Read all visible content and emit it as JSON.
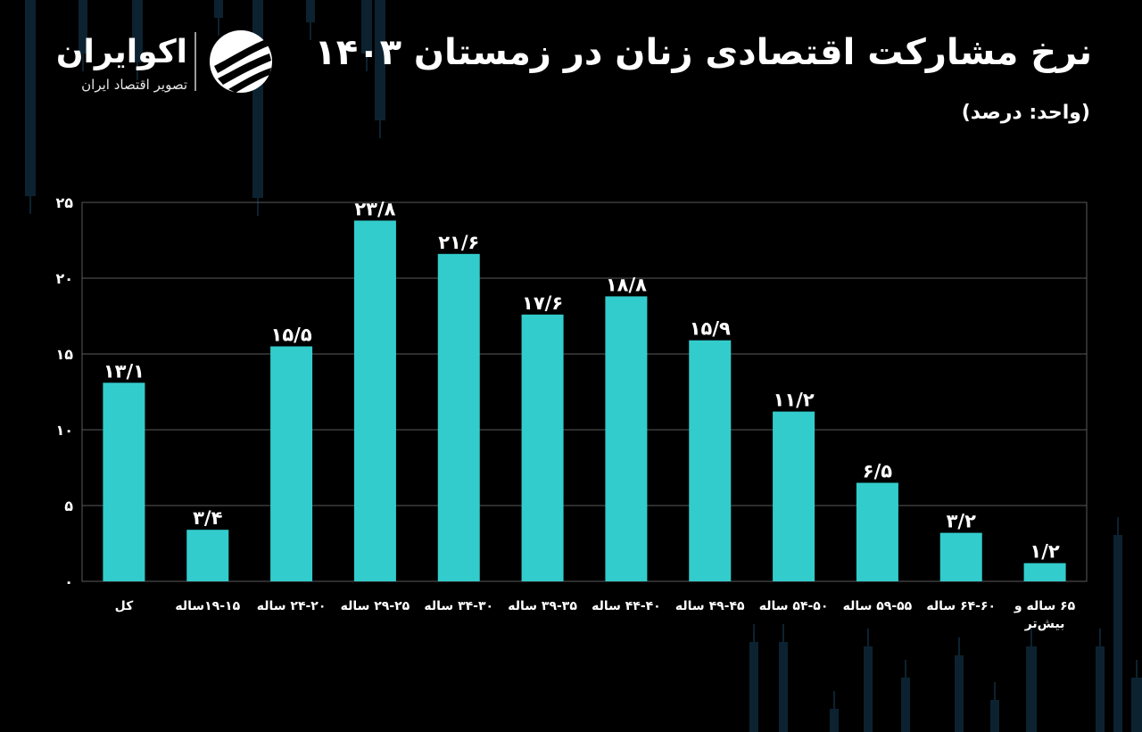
{
  "brand": {
    "name": "اکوایران",
    "tagline": "تصویر اقتصاد ایران"
  },
  "header": {
    "title": "نرخ مشارکت اقتصادی زنان در زمستان ۱۴۰۳",
    "unit": "(واحد: درصد)"
  },
  "colors": {
    "background": "#000000",
    "bar": "#33cccc",
    "grid": "#5a5a5a",
    "text": "#ffffff",
    "deco": "#0c2230"
  },
  "chart_data": {
    "type": "bar",
    "categories": [
      "کل",
      "۱۹-۱۵ساله",
      "۲۴-۲۰ ساله",
      "۲۹-۲۵ ساله",
      "۳۴-۳۰ ساله",
      "۳۹-۳۵ ساله",
      "۴۴-۴۰ ساله",
      "۴۹-۴۵ ساله",
      "۵۴-۵۰ ساله",
      "۵۹-۵۵ ساله",
      "۶۴-۶۰ ساله",
      [
        "۶۵ ساله و",
        "بیش‌تر"
      ]
    ],
    "values": [
      13.1,
      3.4,
      15.5,
      23.8,
      21.6,
      17.6,
      18.8,
      15.9,
      11.2,
      6.5,
      3.2,
      1.2
    ],
    "data_labels": [
      "۱۳/۱",
      "۳/۴",
      "۱۵/۵",
      "۲۳/۸",
      "۲۱/۶",
      "۱۷/۶",
      "۱۸/۸",
      "۱۵/۹",
      "۱۱/۲",
      "۶/۵",
      "۳/۲",
      "۱/۲"
    ],
    "title": "نرخ مشارکت اقتصادی زنان در زمستان ۱۴۰۳",
    "xlabel": "",
    "ylabel": "",
    "ylim": [
      0,
      25
    ],
    "yticks": [
      0,
      5,
      10,
      15,
      20,
      25
    ],
    "ytick_labels": [
      "۰",
      "۵",
      "۱۰",
      "۱۵",
      "۲۰",
      "۲۵"
    ],
    "grid": true,
    "legend": "none"
  }
}
